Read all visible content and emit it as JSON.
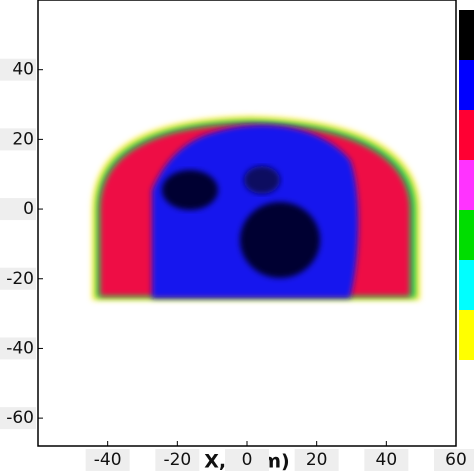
{
  "chart_data": {
    "type": "density",
    "x_label": "X, (mm)",
    "xlim": [
      -60,
      60
    ],
    "xticks": [
      -40,
      -20,
      0,
      20,
      40,
      60
    ],
    "ylim": [
      -68,
      60
    ],
    "yticks": [
      40,
      20,
      0,
      -20,
      -40,
      -60
    ],
    "colorbar_colors": [
      "#000000",
      "#0000ff",
      "#ff0033",
      "#ff33ff",
      "#00dd00",
      "#00ffff",
      "#ffff00"
    ]
  }
}
